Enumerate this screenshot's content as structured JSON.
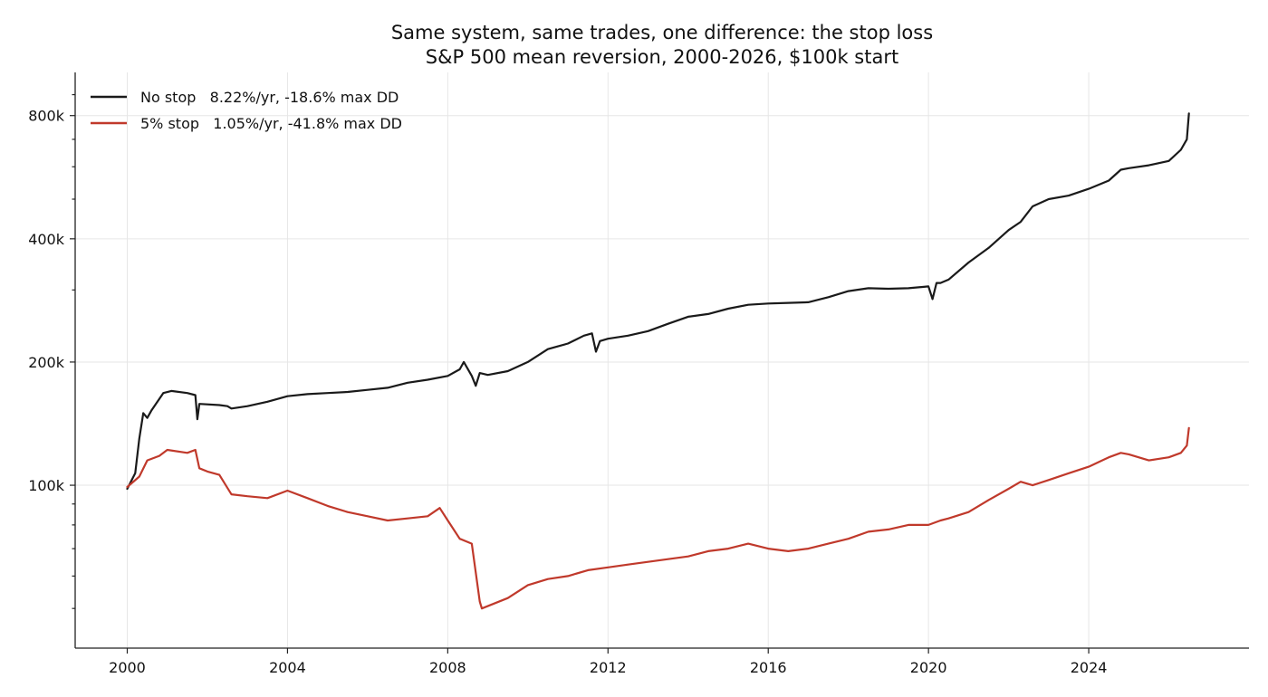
{
  "chart_data": {
    "type": "line",
    "title": "Same system, same trades, one difference: the stop loss",
    "subtitle": "S&P 500 mean reversion, 2000-2026, $100k start",
    "xlabel": "",
    "ylabel": "",
    "y_scale": "log",
    "xlim": [
      1998.7,
      2028.0
    ],
    "ylim": [
      40000,
      1020000
    ],
    "x_ticks": [
      2000,
      2004,
      2008,
      2012,
      2016,
      2020,
      2024
    ],
    "x_tick_labels": [
      "2000",
      "2004",
      "2008",
      "2012",
      "2016",
      "2020",
      "2024"
    ],
    "y_ticks": [
      100000,
      200000,
      400000,
      800000
    ],
    "y_tick_labels": [
      "100k",
      "200k",
      "400k",
      "800k"
    ],
    "y_minor_ticks": [
      50000,
      60000,
      70000,
      80000,
      90000,
      300000,
      500000,
      600000,
      700000,
      900000
    ],
    "grid": true,
    "legend_position": "top-left",
    "series": [
      {
        "name": "No stop",
        "label": "No stop   8.22%/yr, -18.6% max DD",
        "color": "#1a1a1a",
        "x": [
          2000.0,
          2000.2,
          2000.3,
          2000.4,
          2000.5,
          2000.6,
          2000.9,
          2001.1,
          2001.5,
          2001.7,
          2001.75,
          2001.8,
          2002.3,
          2002.5,
          2002.6,
          2003.0,
          2003.5,
          2004.0,
          2004.5,
          2005.0,
          2005.5,
          2006.0,
          2006.5,
          2007.0,
          2007.5,
          2008.0,
          2008.3,
          2008.4,
          2008.6,
          2008.7,
          2008.8,
          2009.0,
          2009.5,
          2010.0,
          2010.5,
          2011.0,
          2011.4,
          2011.6,
          2011.7,
          2011.8,
          2012.0,
          2012.5,
          2013.0,
          2013.5,
          2014.0,
          2014.5,
          2015.0,
          2015.5,
          2016.0,
          2016.5,
          2017.0,
          2017.5,
          2018.0,
          2018.5,
          2019.0,
          2019.5,
          2020.0,
          2020.1,
          2020.2,
          2020.3,
          2020.5,
          2021.0,
          2021.5,
          2022.0,
          2022.3,
          2022.6,
          2023.0,
          2023.5,
          2024.0,
          2024.5,
          2024.8,
          2025.0,
          2025.5,
          2026.0,
          2026.3,
          2026.45,
          2026.5
        ],
        "values": [
          98000,
          107000,
          130000,
          150000,
          146000,
          152000,
          168000,
          170000,
          168000,
          166000,
          145000,
          158000,
          157000,
          156000,
          154000,
          156000,
          160000,
          165000,
          167000,
          168000,
          169000,
          171000,
          173000,
          178000,
          181000,
          185000,
          192000,
          200000,
          185000,
          175000,
          188000,
          186000,
          190000,
          200000,
          215000,
          222000,
          232000,
          235000,
          212000,
          225000,
          228000,
          232000,
          238000,
          248000,
          258000,
          262000,
          270000,
          276000,
          278000,
          279000,
          280000,
          288000,
          298000,
          303000,
          302000,
          303000,
          306000,
          285000,
          312000,
          312000,
          318000,
          350000,
          380000,
          420000,
          440000,
          480000,
          500000,
          510000,
          530000,
          555000,
          590000,
          595000,
          605000,
          620000,
          660000,
          700000,
          810000
        ]
      },
      {
        "name": "5% stop",
        "label": "5% stop   1.05%/yr, -41.8% max DD",
        "color": "#c0392b",
        "x": [
          2000.0,
          2000.3,
          2000.5,
          2000.8,
          2001.0,
          2001.5,
          2001.7,
          2001.8,
          2002.0,
          2002.3,
          2002.6,
          2003.0,
          2003.5,
          2004.0,
          2004.5,
          2005.0,
          2005.5,
          2006.0,
          2006.5,
          2007.0,
          2007.5,
          2007.8,
          2008.0,
          2008.3,
          2008.6,
          2008.8,
          2008.85,
          2009.5,
          2010.0,
          2010.5,
          2011.0,
          2011.5,
          2012.0,
          2012.5,
          2013.0,
          2013.5,
          2014.0,
          2014.5,
          2015.0,
          2015.5,
          2016.0,
          2016.5,
          2017.0,
          2017.5,
          2018.0,
          2018.5,
          2019.0,
          2019.5,
          2020.0,
          2020.3,
          2020.5,
          2021.0,
          2021.5,
          2022.0,
          2022.3,
          2022.6,
          2023.0,
          2023.5,
          2024.0,
          2024.5,
          2024.8,
          2025.0,
          2025.5,
          2026.0,
          2026.3,
          2026.45,
          2026.5
        ],
        "values": [
          99000,
          105000,
          115000,
          118000,
          122000,
          120000,
          122000,
          110000,
          108000,
          106000,
          95000,
          94000,
          93000,
          97000,
          93000,
          89000,
          86000,
          84000,
          82000,
          83000,
          84000,
          88000,
          82000,
          74000,
          72000,
          52000,
          50000,
          53000,
          57000,
          59000,
          60000,
          62000,
          63000,
          64000,
          65000,
          66000,
          67000,
          69000,
          70000,
          72000,
          70000,
          69000,
          70000,
          72000,
          74000,
          77000,
          78000,
          80000,
          80000,
          82000,
          83000,
          86000,
          92000,
          98000,
          102000,
          100000,
          103000,
          107000,
          111000,
          117000,
          120000,
          119000,
          115000,
          117000,
          120000,
          125000,
          138000
        ]
      }
    ]
  }
}
